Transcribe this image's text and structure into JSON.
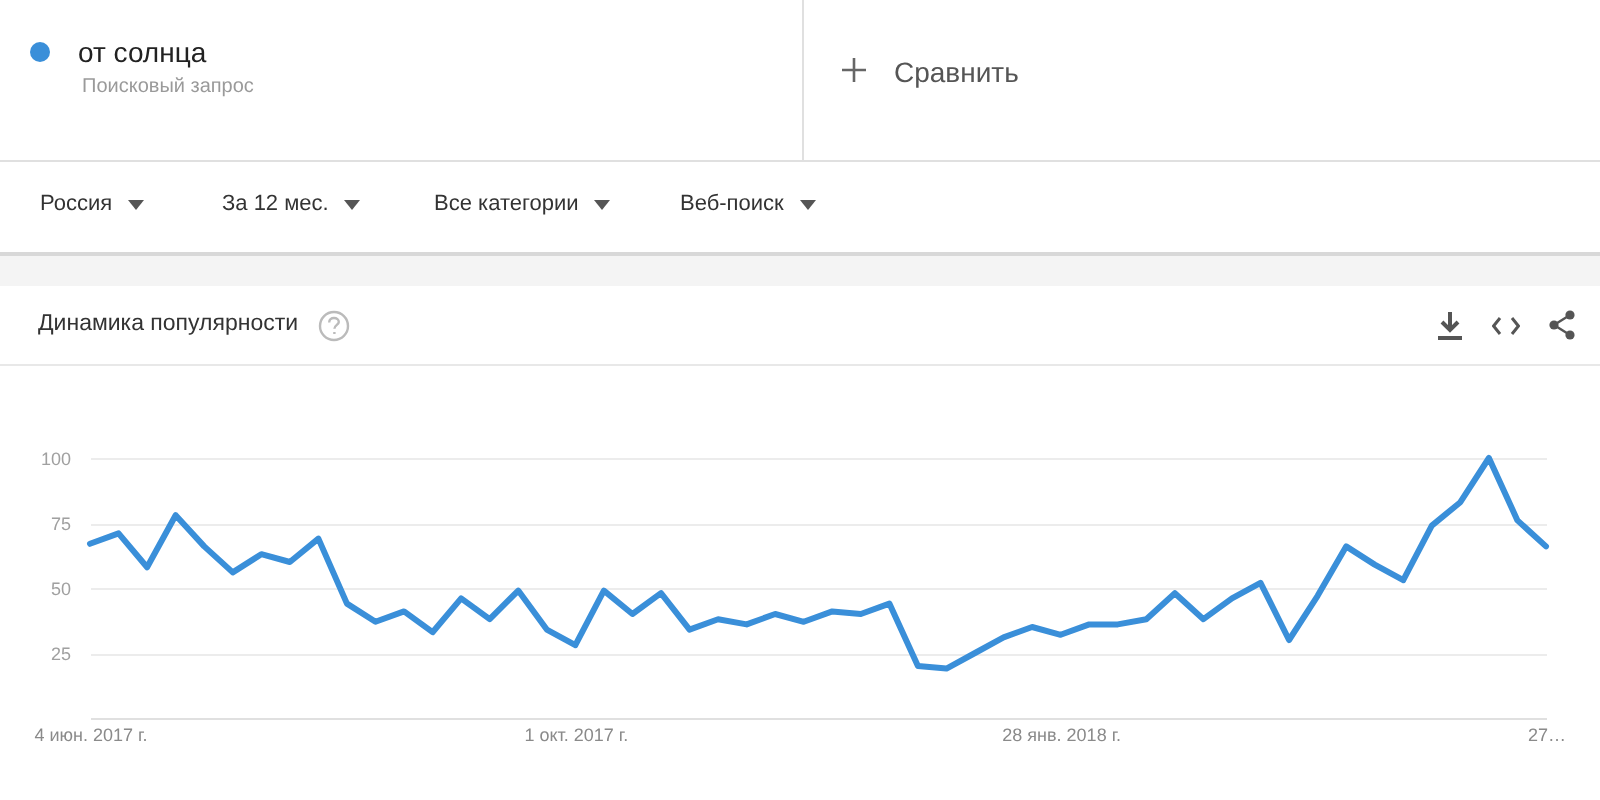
{
  "chart_data": {
    "type": "line",
    "title": "Динамика популярности",
    "annotations": [
      "Поисковый запрос",
      "Сравнить",
      "Россия",
      "За 12 мес.",
      "Все категории",
      "Веб-поиск"
    ],
    "x": [
      "2017-06-04",
      "2017-06-11",
      "2017-06-18",
      "2017-06-25",
      "2017-07-02",
      "2017-07-09",
      "2017-07-16",
      "2017-07-23",
      "2017-07-30",
      "2017-08-06",
      "2017-08-13",
      "2017-08-20",
      "2017-08-27",
      "2017-09-03",
      "2017-09-10",
      "2017-09-17",
      "2017-09-24",
      "2017-10-01",
      "2017-10-08",
      "2017-10-15",
      "2017-10-22",
      "2017-10-29",
      "2017-11-05",
      "2017-11-12",
      "2017-11-19",
      "2017-11-26",
      "2017-12-03",
      "2017-12-10",
      "2017-12-17",
      "2017-12-24",
      "2017-12-31",
      "2018-01-07",
      "2018-01-14",
      "2018-01-21",
      "2018-01-28",
      "2018-02-04",
      "2018-02-11",
      "2018-02-18",
      "2018-02-25",
      "2018-03-04",
      "2018-03-11",
      "2018-03-18",
      "2018-03-25",
      "2018-04-01",
      "2018-04-08",
      "2018-04-15",
      "2018-04-22",
      "2018-04-29",
      "2018-05-06",
      "2018-05-13",
      "2018-05-20",
      "2018-05-27"
    ],
    "series": [
      {
        "name": "от солнца",
        "color": "#3a8fd9",
        "values": [
          67,
          71,
          58,
          78,
          66,
          56,
          63,
          60,
          69,
          44,
          37,
          41,
          33,
          46,
          38,
          49,
          34,
          28,
          49,
          40,
          48,
          34,
          38,
          36,
          40,
          37,
          41,
          40,
          44,
          20,
          19,
          25,
          31,
          35,
          32,
          36,
          36,
          38,
          48,
          38,
          46,
          52,
          30,
          47,
          66,
          59,
          53,
          74,
          83,
          100,
          76,
          66
        ]
      }
    ],
    "xlim": [
      "2017-06-04",
      "2018-05-27"
    ],
    "xticks": [
      {
        "value": "2017-06-04",
        "label": "4 июн. 2017 г."
      },
      {
        "value": "2017-10-01",
        "label": "1 окт. 2017 г."
      },
      {
        "value": "2018-01-28",
        "label": "28 янв. 2018 г."
      },
      {
        "value": "2018-05-27",
        "label": "27…"
      }
    ],
    "ylim": [
      0,
      100
    ],
    "yticks": [
      25,
      50,
      75,
      100
    ],
    "grid": "y",
    "legend": "top left",
    "marker": "none",
    "line_style": "solid"
  }
}
